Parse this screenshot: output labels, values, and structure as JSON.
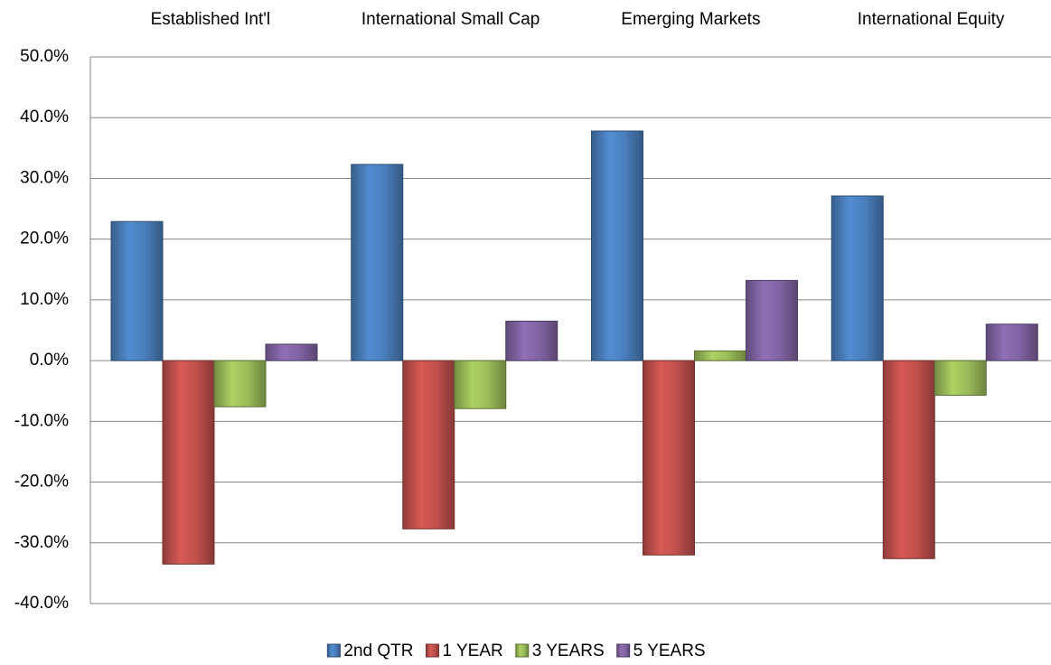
{
  "chart_data": {
    "type": "bar",
    "categories": [
      "Established Int'l",
      "International Small Cap",
      "Emerging Markets",
      "International Equity"
    ],
    "series": [
      {
        "name": "2nd QTR",
        "color": "#4a7ebb",
        "values": [
          22.9,
          32.3,
          37.8,
          27.1
        ]
      },
      {
        "name": "1 YEAR",
        "color": "#c0504d",
        "values": [
          -33.5,
          -27.7,
          -32.0,
          -32.6
        ]
      },
      {
        "name": "3 YEARS",
        "color": "#9bbb59",
        "values": [
          -7.6,
          -7.9,
          1.6,
          -5.7
        ]
      },
      {
        "name": "5 YEARS",
        "color": "#8064a2",
        "values": [
          2.7,
          6.5,
          13.2,
          6.0
        ]
      }
    ],
    "ylim": [
      -40,
      50
    ],
    "yticks": [
      {
        "value": -40,
        "label": "-40.0%"
      },
      {
        "value": -30,
        "label": "-30.0%"
      },
      {
        "value": -20,
        "label": "-20.0%"
      },
      {
        "value": -10,
        "label": "-10.0%"
      },
      {
        "value": 0,
        "label": "0.0%"
      },
      {
        "value": 10,
        "label": "10.0%"
      },
      {
        "value": 20,
        "label": "20.0%"
      },
      {
        "value": 30,
        "label": "30.0%"
      },
      {
        "value": 40,
        "label": "40.0%"
      },
      {
        "value": 50,
        "label": "50.0%"
      }
    ],
    "grid": true,
    "legend": "bottom"
  }
}
